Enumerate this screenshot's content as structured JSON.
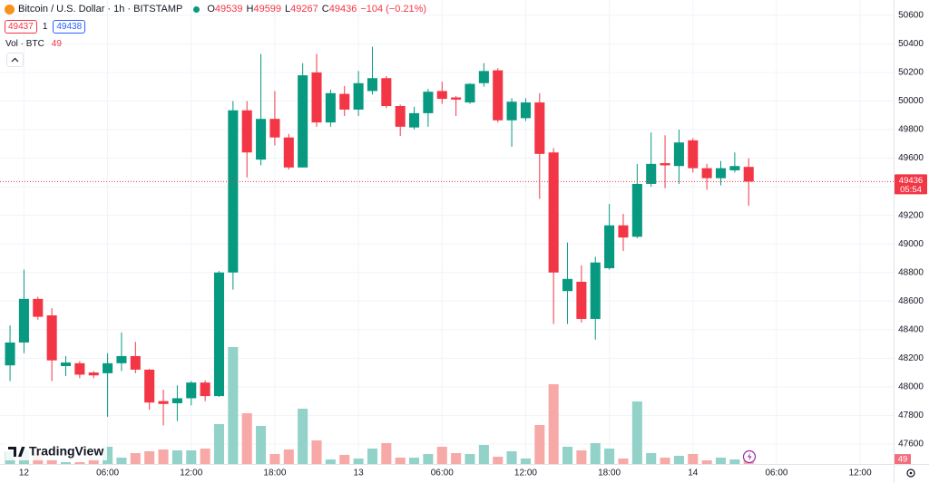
{
  "chart_data": {
    "type": "candlestick",
    "title": "Bitcoin / U.S. Dollar · 1h · BITSTAMP",
    "ohlc_keys": [
      "O",
      "H",
      "L",
      "C"
    ],
    "change": "−104 (−0.21%)",
    "order_panel": {
      "sell": 49437,
      "spread": 1,
      "buy": 49438
    },
    "volume_title": "Vol · BTC",
    "countdown": "05:54",
    "logo": "TradingView",
    "x": [
      0,
      1,
      2,
      3,
      4,
      5,
      6,
      7,
      8,
      9,
      10,
      11,
      12,
      13,
      14,
      15,
      16,
      17,
      18,
      19,
      20,
      21,
      22,
      23,
      24,
      25,
      26,
      27,
      28,
      29,
      30,
      31,
      32,
      33,
      34,
      35,
      36,
      37,
      38,
      39,
      40,
      41,
      42,
      43,
      44,
      45,
      46,
      47,
      48,
      49,
      50,
      51,
      52,
      53
    ],
    "open": [
      48150,
      48310,
      48615,
      48500,
      48145,
      48165,
      48100,
      48095,
      48165,
      48215,
      48120,
      47900,
      47885,
      47920,
      48030,
      47935,
      48800,
      49935,
      49590,
      49875,
      49745,
      49535,
      50200,
      49850,
      50050,
      49940,
      50070,
      50160,
      49965,
      49815,
      49915,
      50070,
      50025,
      49990,
      50125,
      50215,
      49865,
      49880,
      49990,
      49640,
      48670,
      48735,
      48475,
      48830,
      49130,
      49050,
      49420,
      49565,
      49545,
      49725,
      49530,
      49460,
      49515,
      49539
    ],
    "high": [
      48430,
      48820,
      48630,
      48550,
      48215,
      48180,
      48110,
      48235,
      48380,
      48315,
      48125,
      47980,
      48010,
      48040,
      48045,
      48810,
      50000,
      50000,
      50330,
      50070,
      49770,
      50265,
      50330,
      50080,
      50105,
      50210,
      50380,
      50175,
      49975,
      49960,
      50085,
      50135,
      50035,
      50125,
      50265,
      50230,
      50020,
      50020,
      50055,
      49670,
      49010,
      48850,
      48910,
      49280,
      49210,
      49560,
      49780,
      49760,
      49800,
      49740,
      49560,
      49580,
      49640,
      49599
    ],
    "low": [
      48040,
      48235,
      48470,
      48040,
      48075,
      48060,
      48060,
      47790,
      48110,
      48095,
      47840,
      47730,
      47760,
      47870,
      47900,
      47930,
      48680,
      49465,
      49550,
      49690,
      49520,
      49535,
      49820,
      49820,
      49895,
      49895,
      50045,
      49950,
      49755,
      49800,
      49820,
      49980,
      49895,
      49980,
      50100,
      49850,
      49680,
      49860,
      49315,
      48440,
      48440,
      48450,
      48330,
      48820,
      48950,
      49040,
      49400,
      49390,
      49420,
      49500,
      49380,
      49410,
      49500,
      49267
    ],
    "close": [
      48310,
      48615,
      48490,
      48185,
      48170,
      48085,
      48080,
      48165,
      48215,
      48120,
      47890,
      47880,
      47920,
      48030,
      47935,
      48800,
      49935,
      49640,
      49875,
      49745,
      49535,
      50180,
      49850,
      50055,
      49940,
      50125,
      50160,
      49965,
      49820,
      49915,
      50065,
      50015,
      50010,
      50120,
      50210,
      49865,
      49995,
      49990,
      49630,
      48800,
      48755,
      48475,
      48870,
      49130,
      49045,
      49420,
      49560,
      49550,
      49710,
      49530,
      49460,
      49530,
      49545,
      49436
    ],
    "volume": [
      140,
      150,
      120,
      50,
      20,
      20,
      40,
      190,
      70,
      120,
      140,
      160,
      150,
      150,
      170,
      440,
      1290,
      560,
      420,
      110,
      160,
      610,
      260,
      50,
      100,
      60,
      170,
      230,
      70,
      70,
      110,
      190,
      120,
      110,
      210,
      80,
      140,
      60,
      430,
      880,
      190,
      150,
      230,
      170,
      60,
      690,
      120,
      70,
      90,
      110,
      40,
      70,
      50,
      49
    ],
    "up_color": "#089981",
    "down_color": "#f23645",
    "volume_up_color": "#92d2c8",
    "volume_down_color": "#f7a9a7",
    "xlim": [
      -0.72,
      63.4
    ],
    "xticks": [
      {
        "value": 1,
        "label": "12"
      },
      {
        "value": 7,
        "label": "06:00"
      },
      {
        "value": 13,
        "label": "12:00"
      },
      {
        "value": 19,
        "label": "18:00"
      },
      {
        "value": 25,
        "label": "13"
      },
      {
        "value": 31,
        "label": "06:00"
      },
      {
        "value": 37,
        "label": "12:00"
      },
      {
        "value": 43,
        "label": "18:00"
      },
      {
        "value": 49,
        "label": "14"
      },
      {
        "value": 55,
        "label": "06:00"
      },
      {
        "value": 61,
        "label": "12:00"
      }
    ],
    "ylim": [
      47460,
      50707
    ],
    "yticks": [
      47600,
      47800,
      48000,
      48200,
      48400,
      48600,
      48800,
      49000,
      49200,
      49400,
      49600,
      49800,
      50000,
      50200,
      50400,
      50600
    ],
    "grid": true
  }
}
